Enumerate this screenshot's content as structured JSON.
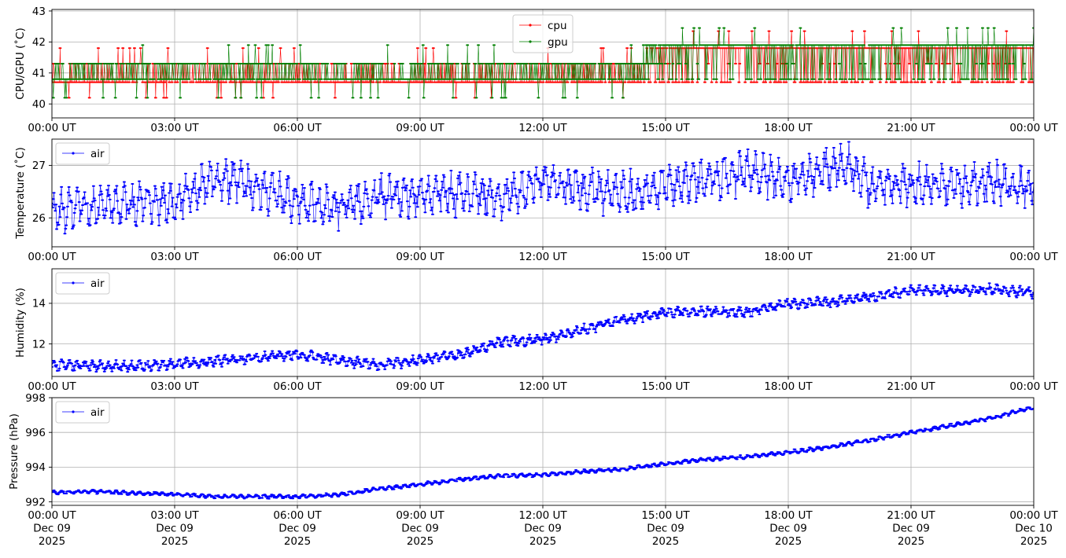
{
  "chart_data": [
    {
      "type": "line",
      "ylabel": "CPU/GPU (˚C)",
      "ylim": [
        39.55,
        43.05
      ],
      "yticks": [
        "40",
        "41",
        "42",
        "43"
      ],
      "yticks_values": [
        40,
        41,
        42,
        43
      ],
      "xlim": [
        "2025-12-09 00:00",
        "2025-12-10 00:00"
      ],
      "xticks": [
        "00:00 UT",
        "03:00 UT",
        "06:00 UT",
        "09:00 UT",
        "12:00 UT",
        "15:00 UT",
        "18:00 UT",
        "21:00 UT",
        "00:00 UT"
      ],
      "grid": true,
      "legend": "top-center",
      "series": [
        {
          "name": "cpu",
          "color": "#ff0000",
          "levels": [
            40.2,
            40.7,
            41.3,
            41.8
          ],
          "profile_hours": [
            0,
            3,
            6,
            9,
            12,
            14.5,
            15,
            18,
            21,
            24
          ],
          "profile_values": [
            40.85,
            41.0,
            40.95,
            40.9,
            40.95,
            41.0,
            41.3,
            41.35,
            41.3,
            41.35
          ]
        },
        {
          "name": "gpu",
          "color": "#008000",
          "levels": [
            40.2,
            40.8,
            41.3,
            41.9
          ],
          "profile_hours": [
            0,
            3,
            6,
            9,
            12,
            14.5,
            15,
            18,
            21,
            24
          ],
          "profile_values": [
            40.95,
            41.05,
            41.0,
            40.95,
            41.0,
            41.05,
            41.45,
            41.5,
            41.45,
            41.5
          ]
        }
      ]
    },
    {
      "type": "line",
      "ylabel": "Temperature (˚C)",
      "ylim": [
        25.45,
        27.5
      ],
      "yticks": [
        "26",
        "27"
      ],
      "yticks_values": [
        26,
        27
      ],
      "xticks": [
        "00:00 UT",
        "03:00 UT",
        "06:00 UT",
        "09:00 UT",
        "12:00 UT",
        "15:00 UT",
        "18:00 UT",
        "21:00 UT",
        "00:00 UT"
      ],
      "grid": true,
      "legend": "top-left",
      "series": [
        {
          "name": "air",
          "color": "#0000ff",
          "profile_hours": [
            0,
            1,
            2,
            3,
            4,
            5,
            6,
            7,
            8,
            9,
            10,
            11,
            12,
            13,
            14,
            15,
            16,
            17,
            18,
            19,
            19.5,
            20,
            21,
            22,
            23,
            24
          ],
          "profile_values": [
            26.1,
            26.2,
            26.25,
            26.3,
            26.75,
            26.6,
            26.3,
            26.2,
            26.4,
            26.45,
            26.45,
            26.4,
            26.7,
            26.55,
            26.45,
            26.6,
            26.75,
            26.85,
            26.7,
            26.95,
            27.0,
            26.6,
            26.6,
            26.65,
            26.65,
            26.6
          ],
          "amplitude": 0.28
        }
      ]
    },
    {
      "type": "line",
      "ylabel": "Humidity (%)",
      "ylim": [
        10.4,
        15.7
      ],
      "yticks": [
        "12",
        "14"
      ],
      "yticks_values": [
        12,
        14
      ],
      "xticks": [
        "00:00 UT",
        "03:00 UT",
        "06:00 UT",
        "09:00 UT",
        "12:00 UT",
        "15:00 UT",
        "18:00 UT",
        "21:00 UT",
        "00:00 UT"
      ],
      "grid": true,
      "legend": "top-left",
      "series": [
        {
          "name": "air",
          "color": "#0000ff",
          "profile_hours": [
            0,
            2,
            4,
            6,
            7,
            8,
            9,
            10,
            11,
            12,
            13,
            14,
            15,
            16,
            17,
            18,
            19,
            20,
            21,
            22,
            23,
            24
          ],
          "profile_values": [
            10.95,
            10.9,
            11.15,
            11.5,
            11.2,
            10.95,
            11.2,
            11.5,
            12.1,
            12.2,
            12.7,
            13.2,
            13.55,
            13.6,
            13.55,
            14.0,
            14.05,
            14.3,
            14.65,
            14.6,
            14.7,
            14.5
          ],
          "amplitude": 0.18
        }
      ]
    },
    {
      "type": "line",
      "ylabel": "Pressure (hPa)",
      "ylim": [
        991.8,
        998.0
      ],
      "yticks": [
        "992",
        "994",
        "996",
        "998"
      ],
      "yticks_values": [
        992,
        994,
        996,
        998
      ],
      "xticks": [
        "00:00 UT\nDec 09\n2025",
        "03:00 UT\nDec 09\n2025",
        "06:00 UT\nDec 09\n2025",
        "09:00 UT\nDec 09\n2025",
        "12:00 UT\nDec 09\n2025",
        "15:00 UT\nDec 09\n2025",
        "18:00 UT\nDec 09\n2025",
        "21:00 UT\nDec 09\n2025",
        "00:00 UT\nDec 10\n2025"
      ],
      "grid": true,
      "legend": "top-left",
      "series": [
        {
          "name": "air",
          "color": "#0000ff",
          "profile_hours": [
            0,
            1,
            2,
            3,
            4,
            5,
            6,
            7,
            8,
            9,
            10,
            11,
            12,
            13,
            14,
            15,
            16,
            17,
            18,
            19,
            20,
            21,
            22,
            23,
            24
          ],
          "profile_values": [
            992.55,
            992.6,
            992.5,
            992.45,
            992.3,
            992.3,
            992.3,
            992.4,
            992.75,
            993.0,
            993.3,
            993.5,
            993.55,
            993.75,
            993.9,
            994.2,
            994.45,
            994.6,
            994.85,
            995.15,
            995.55,
            996.0,
            996.4,
            996.85,
            997.45
          ],
          "amplitude": 0.08
        }
      ]
    }
  ]
}
